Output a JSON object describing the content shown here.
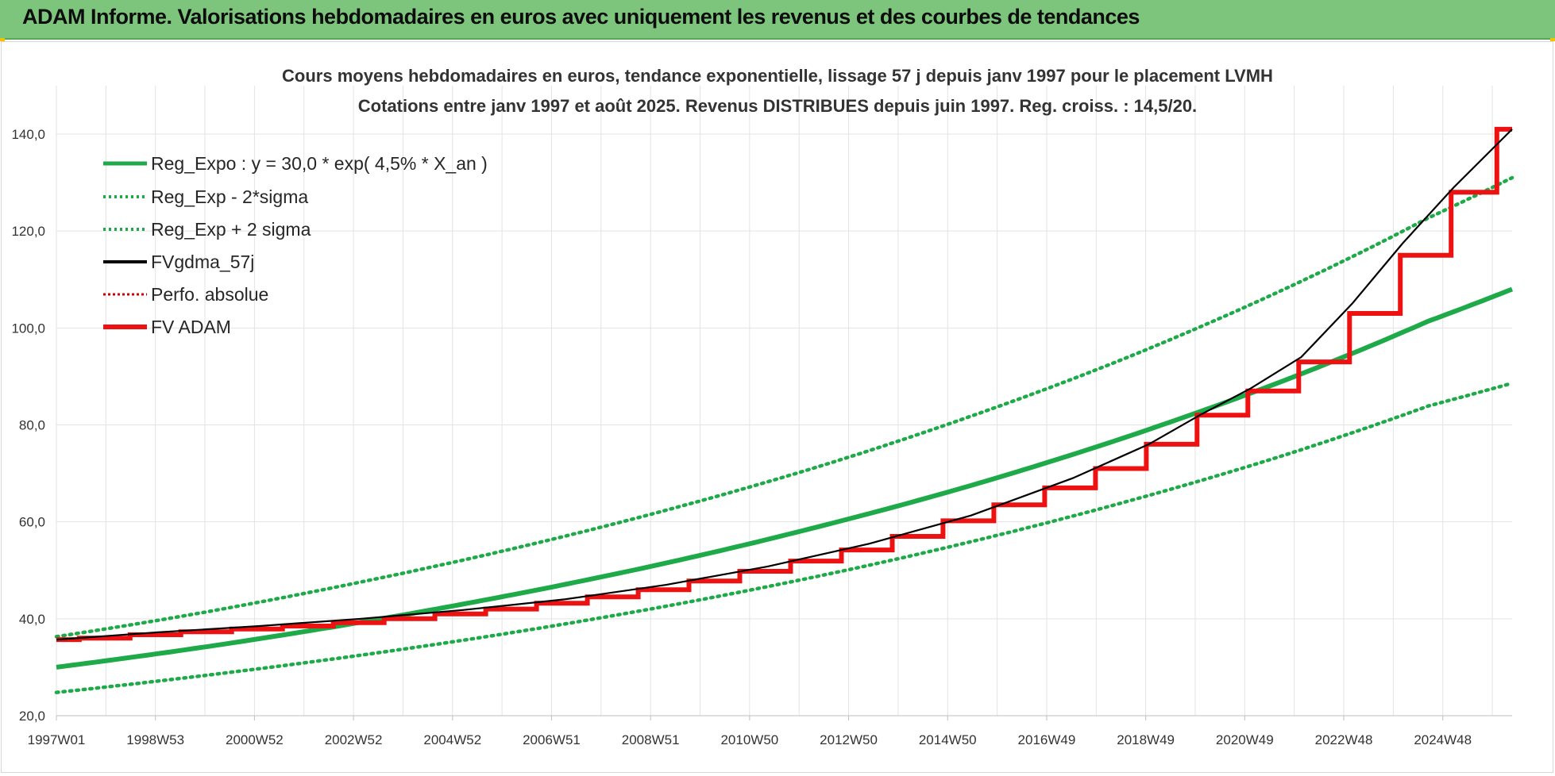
{
  "banner": {
    "title": "ADAM Informe. Valorisations hebdomadaires en euros avec uniquement les revenus et des courbes de tendances"
  },
  "colors": {
    "banner_bg": "#7dc57c",
    "reg_green": "#1faa4a",
    "fv_adam_red": "#ee1111",
    "gdma_black": "#000000",
    "perf_red": "#cc0000"
  },
  "chart_data": {
    "type": "line",
    "title": "Cours moyens hebdomadaires en euros, tendance exponentielle, lissage 57 j depuis janv 1997 pour le placement LVMH",
    "subtitle": "Cotations entre janv 1997 et août 2025.  Revenus DISTRIBUES depuis juin 1997.  Reg. croiss. : 14,5/20.",
    "xlabel": "",
    "ylabel": "",
    "x_tick_labels": [
      "1997W01",
      "1998W53",
      "2000W52",
      "2002W52",
      "2004W52",
      "2006W51",
      "2008W51",
      "2010W50",
      "2012W50",
      "2014W50",
      "2016W49",
      "2018W49",
      "2020W49",
      "2022W48",
      "2024W48"
    ],
    "xlim": [
      1997.0,
      2025.65
    ],
    "y_tick_labels": [
      "20,0",
      "40,0",
      "60,0",
      "80,0",
      "100,0",
      "120,0",
      "140,0"
    ],
    "ylim": [
      20,
      150
    ],
    "grid": true,
    "legend_position": "top-left",
    "series": [
      {
        "name": "Reg_Expo : y = 30,0 * exp( 4,5% *  X_an )",
        "style": "solid-green",
        "x": [
          1997.0,
          2000.0,
          2003.0,
          2006.0,
          2009.0,
          2012.0,
          2015.0,
          2018.0,
          2021.0,
          2024.0,
          2025.65
        ],
        "values": [
          30.0,
          34.3,
          39.3,
          45.0,
          51.5,
          59.0,
          67.5,
          77.3,
          88.5,
          101.4,
          108.0
        ]
      },
      {
        "name": "Reg_Exp - 2*sigma",
        "style": "dotted-green",
        "x": [
          1997.0,
          2000.0,
          2003.0,
          2006.0,
          2009.0,
          2012.0,
          2015.0,
          2018.0,
          2021.0,
          2024.0,
          2025.65
        ],
        "values": [
          24.8,
          28.4,
          32.5,
          37.2,
          42.6,
          48.8,
          55.9,
          64.0,
          73.2,
          83.9,
          88.6
        ]
      },
      {
        "name": "Reg_Exp + 2 sigma",
        "style": "dotted-green",
        "x": [
          1997.0,
          2000.0,
          2003.0,
          2006.0,
          2009.0,
          2012.0,
          2015.0,
          2018.0,
          2021.0,
          2024.0,
          2025.65
        ],
        "values": [
          36.3,
          41.5,
          47.6,
          54.5,
          62.4,
          71.4,
          81.8,
          93.6,
          107.2,
          122.7,
          131.0
        ]
      },
      {
        "name": "FVgdma_57j",
        "style": "solid-black",
        "x": [
          1997.0,
          1999.0,
          2001.0,
          2003.0,
          2005.0,
          2007.0,
          2009.0,
          2011.0,
          2013.0,
          2015.0,
          2017.0,
          2018.5,
          2019.5,
          2020.5,
          2021.5,
          2022.5,
          2023.5,
          2024.5,
          2025.65
        ],
        "values": [
          35.7,
          37.2,
          38.5,
          40.0,
          41.8,
          44.0,
          47.0,
          50.8,
          55.5,
          61.3,
          69.0,
          76.0,
          82.0,
          87.5,
          94.0,
          105.0,
          117.5,
          129.0,
          141.0
        ]
      },
      {
        "name": "Perfo. absolue",
        "style": "dotted-red",
        "x": [],
        "values": []
      },
      {
        "name": "FV ADAM",
        "style": "stepped-red",
        "step_x": [
          1997.0,
          1997.45,
          1998.45,
          1999.45,
          2000.45,
          2001.45,
          2002.45,
          2003.45,
          2004.45,
          2005.45,
          2006.45,
          2007.45,
          2008.45,
          2009.45,
          2010.45,
          2011.45,
          2012.45,
          2013.45,
          2014.45,
          2015.45,
          2016.45,
          2017.45,
          2018.45,
          2019.45,
          2020.45,
          2021.45,
          2022.45,
          2023.45,
          2024.45,
          2025.35
        ],
        "step_values": [
          35.7,
          36.0,
          36.7,
          37.3,
          37.9,
          38.5,
          39.2,
          40.0,
          41.0,
          42.0,
          43.2,
          44.5,
          46.0,
          47.8,
          49.8,
          51.9,
          54.2,
          57.0,
          60.2,
          63.5,
          67.0,
          71.0,
          76.0,
          82.0,
          87.0,
          93.0,
          103.0,
          115.0,
          128.0,
          141.0
        ],
        "x_end": 2025.65
      }
    ]
  }
}
